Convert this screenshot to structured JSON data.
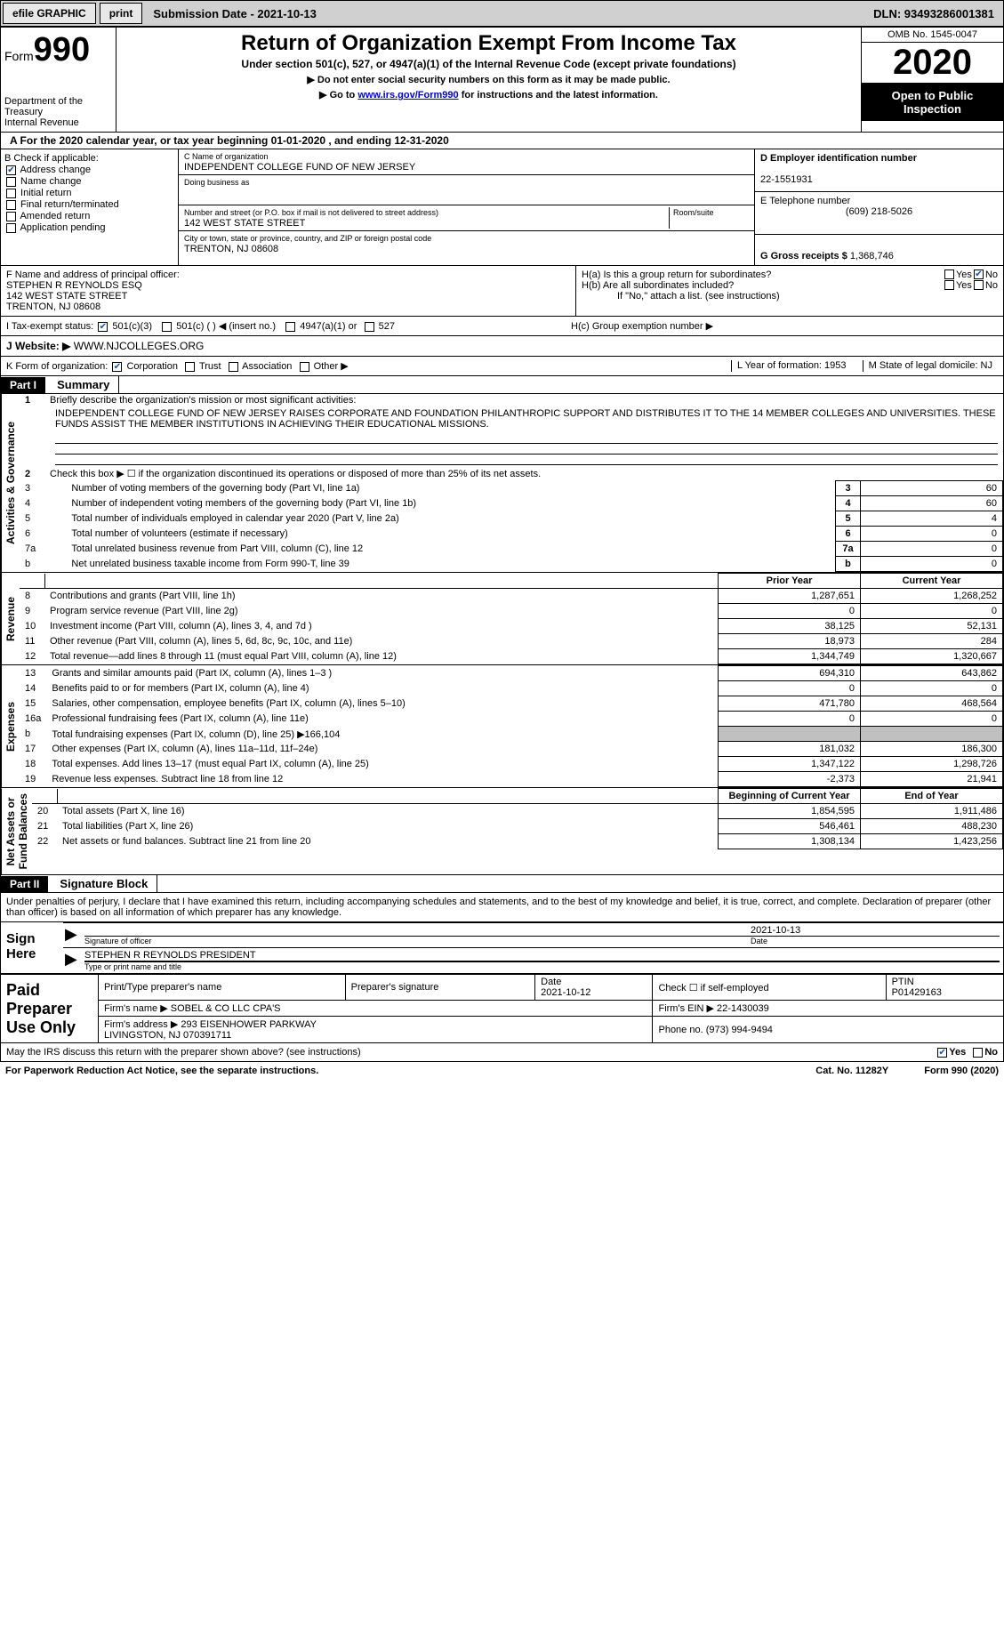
{
  "topbar": {
    "efile": "efile GRAPHIC",
    "print": "print",
    "submission": "Submission Date - 2021-10-13",
    "dln": "DLN: 93493286001381"
  },
  "header": {
    "form_prefix": "Form",
    "form_num": "990",
    "dept": "Department of the Treasury\nInternal Revenue",
    "title": "Return of Organization Exempt From Income Tax",
    "section": "Under section 501(c), 527, or 4947(a)(1) of the Internal Revenue Code (except private foundations)",
    "ssn": "▶ Do not enter social security numbers on this form as it may be made public.",
    "goto_pre": "▶ Go to ",
    "goto_link": "www.irs.gov/Form990",
    "goto_post": " for instructions and the latest information.",
    "omb": "OMB No. 1545-0047",
    "year": "2020",
    "open": "Open to Public Inspection"
  },
  "section_a": "A For the 2020 calendar year, or tax year beginning 01-01-2020   , and ending 12-31-2020",
  "col_b": {
    "label": "B Check if applicable:",
    "opts": [
      "Address change",
      "Name change",
      "Initial return",
      "Final return/terminated",
      "Amended return",
      "Application pending"
    ],
    "checked": [
      true,
      false,
      false,
      false,
      false,
      false
    ]
  },
  "col_c": {
    "name_lbl": "C Name of organization",
    "name": "INDEPENDENT COLLEGE FUND OF NEW JERSEY",
    "dba_lbl": "Doing business as",
    "dba": "",
    "addr_lbl": "Number and street (or P.O. box if mail is not delivered to street address)",
    "room_lbl": "Room/suite",
    "addr": "142 WEST STATE STREET",
    "city_lbl": "City or town, state or province, country, and ZIP or foreign postal code",
    "city": "TRENTON, NJ  08608"
  },
  "col_d": {
    "ein_lbl": "D Employer identification number",
    "ein": "22-1551931",
    "tel_lbl": "E Telephone number",
    "tel": "(609) 218-5026",
    "gross_lbl": "G Gross receipts $",
    "gross": "1,368,746"
  },
  "f": {
    "label": "F  Name and address of principal officer:",
    "name": "STEPHEN R REYNOLDS ESQ",
    "addr1": "142 WEST STATE STREET",
    "addr2": "TRENTON, NJ  08608"
  },
  "h": {
    "a": "H(a)  Is this a group return for subordinates?",
    "a_yes": "Yes",
    "a_no": "No",
    "b": "H(b)  Are all subordinates included?",
    "b_yes": "Yes",
    "b_no": "No",
    "b_note": "If \"No,\" attach a list. (see instructions)",
    "c": "H(c)  Group exemption number ▶"
  },
  "i": {
    "label": "I   Tax-exempt status:",
    "o1": "501(c)(3)",
    "o2": "501(c) (  ) ◀ (insert no.)",
    "o3": "4947(a)(1) or",
    "o4": "527"
  },
  "j": {
    "label": "J   Website: ▶",
    "url": "WWW.NJCOLLEGES.ORG"
  },
  "k": {
    "label": "K Form of organization:",
    "o1": "Corporation",
    "o2": "Trust",
    "o3": "Association",
    "o4": "Other ▶",
    "l": "L Year of formation: 1953",
    "m": "M State of legal domicile: NJ"
  },
  "part1": {
    "hdr": "Part I",
    "title": "Summary",
    "vtab1": "Activities & Governance",
    "l1": "Briefly describe the organization's mission or most significant activities:",
    "mission": "INDEPENDENT COLLEGE FUND OF NEW JERSEY RAISES CORPORATE AND FOUNDATION PHILANTHROPIC SUPPORT AND DISTRIBUTES IT TO THE 14 MEMBER COLLEGES AND UNIVERSITIES. THESE FUNDS ASSIST THE MEMBER INSTITUTIONS IN ACHIEVING THEIR EDUCATIONAL MISSIONS.",
    "l2": "Check this box ▶ ☐  if the organization discontinued its operations or disposed of more than 25% of its net assets.",
    "lines_gov": [
      {
        "n": "3",
        "t": "Number of voting members of the governing body (Part VI, line 1a)",
        "v": "60"
      },
      {
        "n": "4",
        "t": "Number of independent voting members of the governing body (Part VI, line 1b)",
        "v": "60"
      },
      {
        "n": "5",
        "t": "Total number of individuals employed in calendar year 2020 (Part V, line 2a)",
        "v": "4"
      },
      {
        "n": "6",
        "t": "Total number of volunteers (estimate if necessary)",
        "v": "0"
      },
      {
        "n": "7a",
        "t": "Total unrelated business revenue from Part VIII, column (C), line 12",
        "v": "0"
      },
      {
        "n": "b",
        "t": "Net unrelated business taxable income from Form 990-T, line 39",
        "v": "0"
      }
    ],
    "vtab2": "Revenue",
    "col_prior": "Prior Year",
    "col_curr": "Current Year",
    "rev": [
      {
        "n": "8",
        "t": "Contributions and grants (Part VIII, line 1h)",
        "p": "1,287,651",
        "c": "1,268,252"
      },
      {
        "n": "9",
        "t": "Program service revenue (Part VIII, line 2g)",
        "p": "0",
        "c": "0"
      },
      {
        "n": "10",
        "t": "Investment income (Part VIII, column (A), lines 3, 4, and 7d )",
        "p": "38,125",
        "c": "52,131"
      },
      {
        "n": "11",
        "t": "Other revenue (Part VIII, column (A), lines 5, 6d, 8c, 9c, 10c, and 11e)",
        "p": "18,973",
        "c": "284"
      },
      {
        "n": "12",
        "t": "Total revenue—add lines 8 through 11 (must equal Part VIII, column (A), line 12)",
        "p": "1,344,749",
        "c": "1,320,667"
      }
    ],
    "vtab3": "Expenses",
    "exp": [
      {
        "n": "13",
        "t": "Grants and similar amounts paid (Part IX, column (A), lines 1–3 )",
        "p": "694,310",
        "c": "643,862"
      },
      {
        "n": "14",
        "t": "Benefits paid to or for members (Part IX, column (A), line 4)",
        "p": "0",
        "c": "0"
      },
      {
        "n": "15",
        "t": "Salaries, other compensation, employee benefits (Part IX, column (A), lines 5–10)",
        "p": "471,780",
        "c": "468,564"
      },
      {
        "n": "16a",
        "t": "Professional fundraising fees (Part IX, column (A), line 11e)",
        "p": "0",
        "c": "0"
      },
      {
        "n": "b",
        "t": "Total fundraising expenses (Part IX, column (D), line 25) ▶166,104",
        "p": "",
        "c": "",
        "shade": true
      },
      {
        "n": "17",
        "t": "Other expenses (Part IX, column (A), lines 11a–11d, 11f–24e)",
        "p": "181,032",
        "c": "186,300"
      },
      {
        "n": "18",
        "t": "Total expenses. Add lines 13–17 (must equal Part IX, column (A), line 25)",
        "p": "1,347,122",
        "c": "1,298,726"
      },
      {
        "n": "19",
        "t": "Revenue less expenses. Subtract line 18 from line 12",
        "p": "-2,373",
        "c": "21,941"
      }
    ],
    "vtab4": "Net Assets or\nFund Balances",
    "col_beg": "Beginning of Current Year",
    "col_end": "End of Year",
    "net": [
      {
        "n": "20",
        "t": "Total assets (Part X, line 16)",
        "p": "1,854,595",
        "c": "1,911,486"
      },
      {
        "n": "21",
        "t": "Total liabilities (Part X, line 26)",
        "p": "546,461",
        "c": "488,230"
      },
      {
        "n": "22",
        "t": "Net assets or fund balances. Subtract line 21 from line 20",
        "p": "1,308,134",
        "c": "1,423,256"
      }
    ]
  },
  "part2": {
    "hdr": "Part II",
    "title": "Signature Block",
    "decl": "Under penalties of perjury, I declare that I have examined this return, including accompanying schedules and statements, and to the best of my knowledge and belief, it is true, correct, and complete. Declaration of preparer (other than officer) is based on all information of which preparer has any knowledge.",
    "sign_here": "Sign Here",
    "sig_officer": "Signature of officer",
    "date": "Date",
    "sig_date": "2021-10-13",
    "name_title": "STEPHEN R REYNOLDS  PRESIDENT",
    "name_title_lbl": "Type or print name and title",
    "paid": "Paid Preparer Use Only",
    "prep_name_lbl": "Print/Type preparer's name",
    "prep_sig_lbl": "Preparer's signature",
    "prep_date_lbl": "Date",
    "prep_date": "2021-10-12",
    "check_se": "Check ☐ if self-employed",
    "ptin_lbl": "PTIN",
    "ptin": "P01429163",
    "firm_name_lbl": "Firm's name    ▶",
    "firm_name": "SOBEL & CO LLC CPA'S",
    "firm_ein_lbl": "Firm's EIN ▶",
    "firm_ein": "22-1430039",
    "firm_addr_lbl": "Firm's address ▶",
    "firm_addr": "293 EISENHOWER PARKWAY\nLIVINGSTON, NJ  070391711",
    "phone_lbl": "Phone no.",
    "phone": "(973) 994-9494",
    "discuss": "May the IRS discuss this return with the preparer shown above? (see instructions)",
    "d_yes": "Yes",
    "d_no": "No"
  },
  "footer": {
    "left": "For Paperwork Reduction Act Notice, see the separate instructions.",
    "mid": "Cat. No. 11282Y",
    "right": "Form 990 (2020)"
  }
}
